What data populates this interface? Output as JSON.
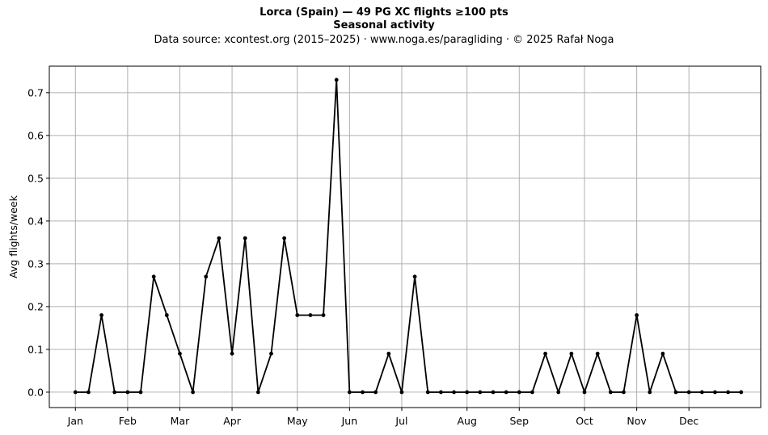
{
  "header": {
    "title_line1": "Lorca (Spain)  —  49 PG XC flights ≥100 pts",
    "title_line2": "Seasonal activity",
    "subtitle": "Data source: xcontest.org (2015–2025)  ·  www.noga.es/paragliding  ·  © 2025 Rafał Noga"
  },
  "chart_data": {
    "type": "line",
    "title": "Lorca (Spain)  —  49 PG XC flights ≥100 pts",
    "subtitle": "Seasonal activity",
    "xlabel": "",
    "ylabel": "Avg flights/week",
    "x_unit": "week of year",
    "xlim": [
      -1.0,
      53.5
    ],
    "ylim": [
      -0.036,
      0.762
    ],
    "grid": true,
    "legend": "none",
    "line_color": "#000000",
    "month_ticks": [
      {
        "label": "Jan",
        "week": 1
      },
      {
        "label": "Feb",
        "week": 5
      },
      {
        "label": "Mar",
        "week": 9
      },
      {
        "label": "Apr",
        "week": 13
      },
      {
        "label": "May",
        "week": 18
      },
      {
        "label": "Jun",
        "week": 22
      },
      {
        "label": "Jul",
        "week": 26
      },
      {
        "label": "Aug",
        "week": 31
      },
      {
        "label": "Sep",
        "week": 35
      },
      {
        "label": "Oct",
        "week": 40
      },
      {
        "label": "Nov",
        "week": 44
      },
      {
        "label": "Dec",
        "week": 48
      }
    ],
    "y_ticks": [
      0.0,
      0.1,
      0.2,
      0.3,
      0.4,
      0.5,
      0.6,
      0.7
    ],
    "y_tick_labels": [
      "0.0",
      "0.1",
      "0.2",
      "0.3",
      "0.4",
      "0.5",
      "0.6",
      "0.7"
    ],
    "x": [
      1,
      2,
      3,
      4,
      5,
      6,
      7,
      8,
      9,
      10,
      11,
      12,
      13,
      14,
      15,
      16,
      17,
      18,
      19,
      20,
      21,
      22,
      23,
      24,
      25,
      26,
      27,
      28,
      29,
      30,
      31,
      32,
      33,
      34,
      35,
      36,
      37,
      38,
      39,
      40,
      41,
      42,
      43,
      44,
      45,
      46,
      47,
      48,
      49,
      50,
      51,
      52
    ],
    "values": [
      0,
      0,
      0.18,
      0,
      0,
      0,
      0.27,
      0.18,
      0.09,
      0,
      0.27,
      0.36,
      0.09,
      0.36,
      0,
      0.09,
      0.36,
      0.18,
      0.18,
      0.18,
      0.73,
      0,
      0,
      0,
      0.09,
      0,
      0.27,
      0,
      0,
      0,
      0,
      0,
      0,
      0,
      0,
      0,
      0.09,
      0,
      0.09,
      0,
      0.09,
      0,
      0,
      0.18,
      0,
      0.09,
      0,
      0,
      0,
      0,
      0,
      0
    ]
  }
}
